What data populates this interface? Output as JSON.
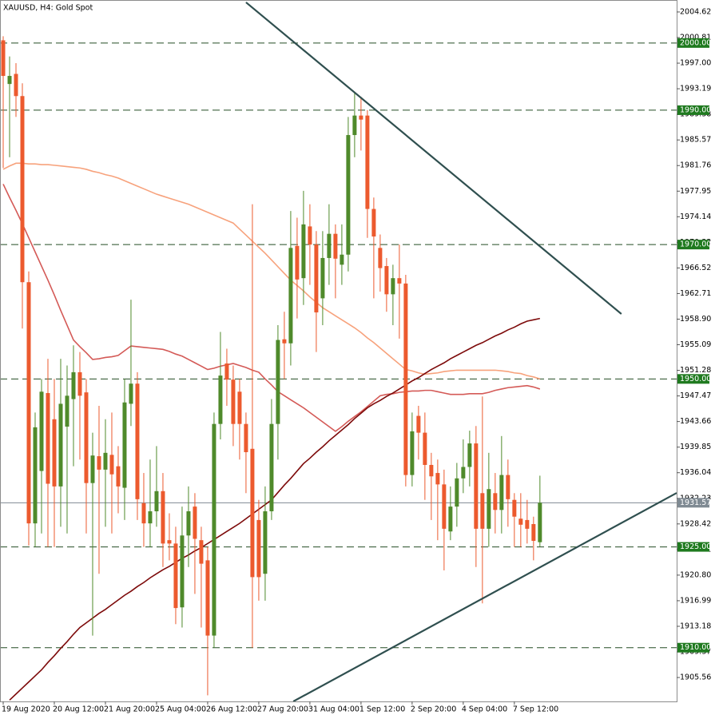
{
  "chart_data": {
    "type": "candlestick",
    "title": "XAUUSD, H4:  Gold Spot",
    "categories": [
      "19 Aug 2020",
      null,
      null,
      null,
      null,
      null,
      null,
      null,
      "20 Aug 12:00",
      null,
      null,
      null,
      null,
      null,
      null,
      null,
      "21 Aug 20:00",
      null,
      null,
      null,
      null,
      null,
      null,
      null,
      "25 Aug 04:00",
      null,
      null,
      null,
      null,
      null,
      null,
      null,
      "26 Aug 12:00",
      null,
      null,
      null,
      null,
      null,
      null,
      null,
      "27 Aug 20:00",
      null,
      null,
      null,
      null,
      null,
      null,
      null,
      "31 Aug 04:00",
      null,
      null,
      null,
      null,
      null,
      null,
      null,
      "1 Sep 12:00",
      null,
      null,
      null,
      null,
      null,
      null,
      null,
      "2 Sep 20:00",
      null,
      null,
      null,
      null,
      null,
      null,
      null,
      "4 Sep 04:00",
      null,
      null,
      null,
      null,
      null,
      null,
      null,
      "7 Sep 12:00",
      null,
      null,
      null,
      null
    ],
    "open": [
      2000.4,
      1993.9,
      1995.4,
      1992.1,
      1964.4,
      1928.5,
      1936.3,
      1947.9,
      1944,
      1934,
      1942.9,
      1947,
      1951,
      1948,
      1934.5,
      1938.5,
      1936.5,
      1938.7,
      1937,
      1933.8,
      1946.3,
      1949.3,
      1931.5,
      1928.5,
      1930.3,
      1933.3,
      1926,
      1925.5,
      1916,
      1926.7,
      1931,
      1926,
      1923,
      1911.8,
      1943.3,
      1952.3,
      1949.9,
      1948.1,
      1943.3,
      1939.6,
      1929,
      1921,
      1930.3,
      1943.3,
      1955.9,
      1955.3,
      1969.8,
      1965,
      1972.7,
      1970,
      1962,
      1968,
      1971.6,
      1967,
      1968.5,
      1986.3,
      1989.2,
      1989.2,
      1975.3,
      1969.5,
      1966.8,
      1962.6,
      1965,
      1964.2,
      1935.7,
      1944.5,
      1942,
      1937.2,
      1936,
      1934.3,
      1927.3,
      1931,
      1935.2,
      1936.9,
      1940.4,
      1933,
      1927.7,
      1933,
      1930.5,
      1935.7,
      1932,
      1929.2,
      1929,
      1928.4,
      1925.7
    ],
    "high": [
      2001,
      1998,
      1997,
      1994,
      1966,
      1945,
      1950,
      1953,
      1950,
      1953,
      1952,
      1955,
      1954,
      1950,
      1942,
      1946,
      1944,
      1945,
      1940,
      1950,
      1961.8,
      1951,
      1936,
      1938,
      1940,
      1936,
      1930,
      1928,
      1931,
      1934,
      1933,
      1928,
      1925,
      1945,
      1957,
      1954.5,
      1952,
      1950,
      1945,
      1976,
      1932,
      1934,
      1947,
      1958,
      1960,
      1975,
      1974,
      1978,
      1976,
      1972,
      1972,
      1976,
      1973,
      1973,
      1989,
      1992.5,
      1992,
      1990,
      1977,
      1971.5,
      1968,
      1967,
      1970,
      1965.5,
      1945,
      1946,
      1945,
      1939,
      1938,
      1936.5,
      1934,
      1937.5,
      1941,
      1942.3,
      1943,
      1947.4,
      1939,
      1936,
      1941.5,
      1938,
      1933,
      1933,
      1932,
      1929.5,
      1935.6
    ],
    "low": [
      1981.4,
      1983,
      1989,
      1957.5,
      1925.2,
      1925,
      1927,
      1925,
      1925,
      1928,
      1927,
      1937,
      1938,
      1927,
      1911.8,
      1921,
      1928,
      1927,
      1930,
      1929,
      1943,
      1929,
      1925,
      1925,
      1928,
      1922,
      1923,
      1913.5,
      1913,
      1922,
      1918,
      1913,
      1902.9,
      1910,
      1941,
      1946,
      1940,
      1938,
      1933,
      1910,
      1917,
      1917,
      1929,
      1938,
      1950,
      1952,
      1959,
      1961,
      1964,
      1954,
      1958,
      1964,
      1962,
      1964,
      1966,
      1983,
      1984,
      1971,
      1962,
      1963,
      1960,
      1958,
      1956,
      1934,
      1934,
      1938,
      1932,
      1929,
      1926,
      1921.5,
      1926,
      1928,
      1933,
      1934,
      1922,
      1916.6,
      1925,
      1927,
      1927,
      1928,
      1925,
      1925,
      1925.5,
      1923,
      1925
    ],
    "close": [
      1995.1,
      1995.1,
      1992.1,
      1964.4,
      1928.5,
      1942.8,
      1948.1,
      1934.4,
      1934,
      1946.3,
      1947.5,
      1951,
      1947.5,
      1934.5,
      1938.6,
      1936.5,
      1939,
      1935.8,
      1934,
      1946.5,
      1949.3,
      1932.1,
      1928.5,
      1930.3,
      1933.3,
      1925.5,
      1925.5,
      1915.9,
      1926.7,
      1930.3,
      1926.2,
      1922.5,
      1911.8,
      1943.3,
      1950.5,
      1949.9,
      1943.3,
      1943.3,
      1939.1,
      1920.5,
      1920.5,
      1930.3,
      1943.3,
      1955.8,
      1955.3,
      1969.5,
      1964.8,
      1973,
      1970,
      1959.9,
      1968,
      1971.6,
      1967.9,
      1968.5,
      1986.3,
      1989.2,
      1988.6,
      1975.3,
      1971.2,
      1966.5,
      1962.6,
      1965,
      1964.2,
      1935.7,
      1942.2,
      1942,
      1937.2,
      1935.5,
      1934.3,
      1927.7,
      1931,
      1935.2,
      1936.9,
      1940.4,
      1927.7,
      1927.7,
      1933.6,
      1930.5,
      1935.7,
      1932.1,
      1929.5,
      1928.3,
      1927.7,
      1925.9,
      1931.57
    ],
    "up_color": "#4f8a2b",
    "down_color": "#ec5a2e",
    "overlays": [
      {
        "color": "#f7a27c",
        "values": [
          1981.2,
          1981.7,
          1982.1,
          1982.1,
          1982.0,
          1982.0,
          1981.9,
          1981.9,
          1981.8,
          1981.7,
          1981.6,
          1981.5,
          1981.4,
          1981.2,
          1980.9,
          1980.7,
          1980.4,
          1980.2,
          1979.9,
          1979.5,
          1979.1,
          1978.7,
          1978.3,
          1977.9,
          1977.5,
          1977.2,
          1976.9,
          1976.6,
          1976.3,
          1976.0,
          1975.6,
          1975.2,
          1974.8,
          1974.4,
          1974.0,
          1973.6,
          1973.2,
          1972.3,
          1971.4,
          1970.5,
          1969.6,
          1968.7,
          1967.7,
          1966.7,
          1965.7,
          1964.7,
          1963.9,
          1963.1,
          1962.2,
          1961.4,
          1960.6,
          1960.0,
          1959.4,
          1958.8,
          1958.2,
          1957.6,
          1956.9,
          1956.1,
          1955.4,
          1954.6,
          1953.8,
          1953.0,
          1952.2,
          1951.4,
          1951.2,
          1950.9,
          1950.7,
          1950.8,
          1950.9,
          1951.1,
          1951.2,
          1951.3,
          1951.3,
          1951.3,
          1951.3,
          1951.3,
          1951.3,
          1951.3,
          1951.2,
          1951.1,
          1950.9,
          1950.8,
          1950.5,
          1950.3,
          1950.0
        ]
      },
      {
        "color": "#d45a57",
        "values": [
          1979.0,
          1977.0,
          1975.1,
          1973.1,
          1971.0,
          1968.9,
          1966.8,
          1964.7,
          1962.5,
          1960.2,
          1958.0,
          1955.8,
          1954.8,
          1953.9,
          1952.9,
          1953.0,
          1953.2,
          1953.3,
          1953.5,
          1954.2,
          1954.9,
          1954.8,
          1954.7,
          1954.6,
          1954.5,
          1954.4,
          1954.1,
          1953.7,
          1953.4,
          1952.9,
          1952.4,
          1951.9,
          1951.4,
          1951.6,
          1951.9,
          1952.1,
          1952.3,
          1952.0,
          1951.7,
          1951.3,
          1951.0,
          1950.0,
          1949.1,
          1948.1,
          1947.5,
          1946.9,
          1946.3,
          1945.7,
          1945.0,
          1944.3,
          1943.6,
          1942.9,
          1942.2,
          1942.9,
          1943.7,
          1944.4,
          1945.1,
          1945.9,
          1946.7,
          1947.5,
          1947.7,
          1947.8,
          1948.0,
          1948.1,
          1948.2,
          1948.2,
          1948.3,
          1948.3,
          1948.1,
          1947.9,
          1947.7,
          1947.7,
          1947.7,
          1947.8,
          1947.8,
          1947.8,
          1948.0,
          1948.3,
          1948.5,
          1948.7,
          1948.8,
          1948.9,
          1949.0,
          1948.8,
          1948.5
        ]
      },
      {
        "color": "#7d0a0a",
        "values": [
          null,
          1902.2,
          1903.1,
          1904.0,
          1904.9,
          1905.8,
          1906.7,
          1907.8,
          1908.8,
          1909.9,
          1910.9,
          1912.0,
          1913.0,
          1913.7,
          1914.4,
          1915.1,
          1915.7,
          1916.4,
          1917.1,
          1917.8,
          1918.4,
          1919.1,
          1919.7,
          1920.4,
          1921.0,
          1921.6,
          1922.1,
          1922.7,
          1923.3,
          1923.8,
          1924.4,
          1924.9,
          1925.5,
          1926.1,
          1926.7,
          1927.3,
          1927.9,
          1928.5,
          1929.2,
          1929.9,
          1930.6,
          1931.3,
          1932.0,
          1933.1,
          1934.2,
          1935.2,
          1936.3,
          1937.4,
          1938.2,
          1939.1,
          1939.9,
          1940.8,
          1941.6,
          1942.4,
          1943.2,
          1944.1,
          1944.9,
          1945.7,
          1946.3,
          1946.8,
          1947.4,
          1947.9,
          1948.5,
          1949.1,
          1949.7,
          1950.2,
          1950.8,
          1951.4,
          1951.9,
          1952.4,
          1953.0,
          1953.5,
          1954.0,
          1954.5,
          1955.0,
          1955.4,
          1955.9,
          1956.4,
          1956.8,
          1957.3,
          1957.7,
          1958.2,
          1958.6,
          1958.8,
          1959.0
        ]
      }
    ],
    "trendlines": [
      {
        "color": "#2f4f4f",
        "x": [
          38,
          96.75
        ],
        "y": [
          2006.05,
          1959.67
        ]
      },
      {
        "color": "#2f4f4f",
        "x": [
          45.4,
          105.4
        ],
        "y": [
          1902.0,
          1933.03
        ]
      }
    ],
    "levels": [
      {
        "value": 2000,
        "label": "2000.00"
      },
      {
        "value": 1990,
        "label": "1990.00"
      },
      {
        "value": 1970,
        "label": "1970.00"
      },
      {
        "value": 1950,
        "label": "1950.00"
      },
      {
        "value": 1925,
        "label": "1925.00"
      },
      {
        "value": 1910,
        "label": "1910.00"
      }
    ],
    "level_color": "#1f7a1f",
    "current_price": {
      "value": 1931.57,
      "label": "1931.57"
    },
    "current_color": "#7f8a93",
    "xlim": [
      -0.5,
      105.4
    ],
    "ylim": [
      1902.0,
      2006.4
    ],
    "yticks": [
      {
        "value": 2004.62,
        "label": "2004.62"
      },
      {
        "value": 2000.81,
        "label": "2000.81"
      },
      {
        "value": 1997.0,
        "label": "1997.00"
      },
      {
        "value": 1993.19,
        "label": "1993.19"
      },
      {
        "value": 1989.38,
        "label": "1989.38"
      },
      {
        "value": 1985.57,
        "label": "1985.57"
      },
      {
        "value": 1981.76,
        "label": "1981.76"
      },
      {
        "value": 1977.95,
        "label": "1977.95"
      },
      {
        "value": 1974.14,
        "label": "1974.14"
      },
      {
        "value": 1970.33,
        "label": "1970.33"
      },
      {
        "value": 1966.52,
        "label": "1966.52"
      },
      {
        "value": 1962.71,
        "label": "1962.71"
      },
      {
        "value": 1958.9,
        "label": "1958.90"
      },
      {
        "value": 1955.09,
        "label": "1955.09"
      },
      {
        "value": 1951.28,
        "label": "1951.28"
      },
      {
        "value": 1947.47,
        "label": "1947.47"
      },
      {
        "value": 1943.66,
        "label": "1943.66"
      },
      {
        "value": 1939.85,
        "label": "1939.85"
      },
      {
        "value": 1936.04,
        "label": "1936.04"
      },
      {
        "value": 1932.23,
        "label": "1932.23"
      },
      {
        "value": 1928.42,
        "label": "1928.42"
      },
      {
        "value": 1924.61,
        "label": "1924.61"
      },
      {
        "value": 1920.8,
        "label": "1920.80"
      },
      {
        "value": 1916.99,
        "label": "1916.99"
      },
      {
        "value": 1913.18,
        "label": "1913.18"
      },
      {
        "value": 1909.37,
        "label": "1909.37"
      },
      {
        "value": 1905.56,
        "label": "1905.56"
      }
    ]
  }
}
